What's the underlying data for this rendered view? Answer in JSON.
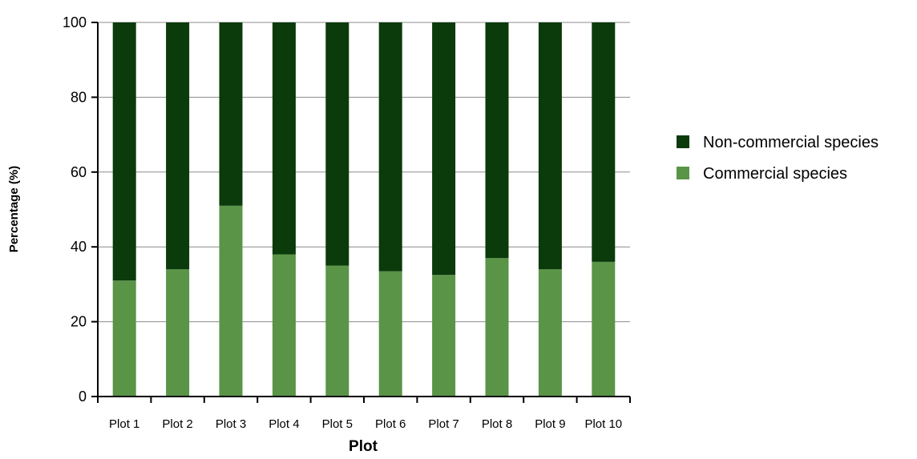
{
  "chart_data": {
    "type": "bar",
    "stacked": true,
    "title": "",
    "xlabel": "Plot",
    "ylabel": "Percentage (%)",
    "ylim": [
      0,
      100
    ],
    "yticks": [
      0,
      20,
      40,
      60,
      80,
      100
    ],
    "grid": true,
    "legend_position": "right",
    "categories": [
      "Plot 1",
      "Plot 2",
      "Plot 3",
      "Plot 4",
      "Plot 5",
      "Plot 6",
      "Plot 7",
      "Plot 8",
      "Plot 9",
      "Plot 10"
    ],
    "series": [
      {
        "name": "Commercial species",
        "color": "#5a9447",
        "values": [
          31,
          34,
          51,
          38,
          35,
          33.5,
          32.5,
          37,
          34,
          36
        ]
      },
      {
        "name": "Non-commercial species",
        "color": "#0b3a0b",
        "values": [
          69,
          66,
          49,
          62,
          65,
          66.5,
          67.5,
          63,
          66,
          64
        ]
      }
    ],
    "legend": [
      "Non-commercial species",
      "Commercial species"
    ]
  }
}
